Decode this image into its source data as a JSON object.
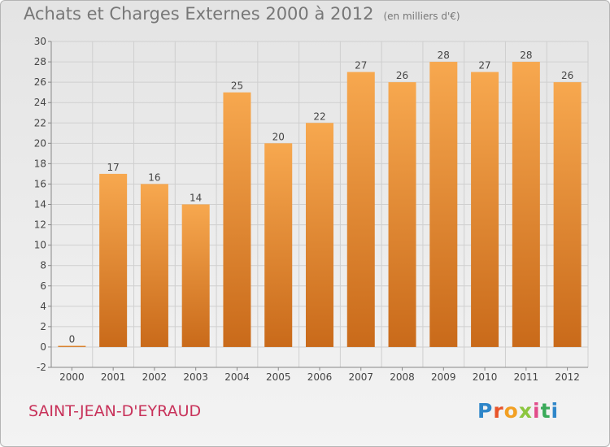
{
  "title": "Achats et Charges Externes 2000 à 2012",
  "unit": "(en milliers d'€)",
  "place": "SAINT-JEAN-D'EYRAUD",
  "logo": {
    "letters": [
      "P",
      "r",
      "o",
      "x",
      "i",
      "t",
      "i"
    ],
    "colors": [
      "#2e86c9",
      "#e8542a",
      "#f2a023",
      "#8cc63f",
      "#e24c8a",
      "#3aaa5a",
      "#2e86c9"
    ]
  },
  "colors": {
    "bar_top": "#f7a84f",
    "bar_bottom": "#c96a1a",
    "grid": "#cfcfcf",
    "axis": "#888888"
  },
  "chart_data": {
    "type": "bar",
    "title": "Achats et Charges Externes 2000 à 2012",
    "subtitle": "(en milliers d'€)",
    "categories": [
      "2000",
      "2001",
      "2002",
      "2003",
      "2004",
      "2005",
      "2006",
      "2007",
      "2008",
      "2009",
      "2010",
      "2011",
      "2012"
    ],
    "values": [
      0,
      17,
      16,
      14,
      25,
      20,
      22,
      27,
      26,
      28,
      27,
      28,
      26
    ],
    "ylim": [
      -2,
      30
    ],
    "yticks": [
      -2,
      0,
      2,
      4,
      6,
      8,
      10,
      12,
      14,
      16,
      18,
      20,
      22,
      24,
      26,
      28,
      30
    ],
    "grid": true,
    "legend": "none"
  }
}
